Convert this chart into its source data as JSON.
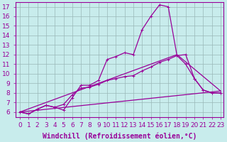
{
  "xlabel": "Windchill (Refroidissement éolien,°C)",
  "background_color": "#c8ecec",
  "line_color": "#990099",
  "xlim": [
    -0.5,
    23.3
  ],
  "ylim": [
    5.5,
    17.5
  ],
  "yticks": [
    6,
    7,
    8,
    9,
    10,
    11,
    12,
    13,
    14,
    15,
    16,
    17
  ],
  "xticks": [
    0,
    1,
    2,
    3,
    4,
    5,
    6,
    7,
    8,
    9,
    10,
    11,
    12,
    13,
    14,
    15,
    16,
    17,
    18,
    19,
    20,
    21,
    22,
    23
  ],
  "curve1_x": [
    0,
    1,
    2,
    3,
    4,
    5,
    6,
    7,
    8,
    9,
    10,
    11,
    12,
    13,
    14,
    15,
    16,
    17,
    18,
    19,
    20,
    21,
    22,
    23
  ],
  "curve1_y": [
    6.0,
    5.8,
    6.3,
    6.7,
    6.5,
    6.2,
    7.5,
    8.8,
    8.8,
    9.3,
    11.5,
    11.8,
    12.2,
    12.0,
    14.6,
    16.0,
    17.2,
    17.0,
    11.9,
    11.0,
    9.5,
    8.3,
    8.0,
    8.0
  ],
  "curve2_x": [
    0,
    1,
    2,
    3,
    4,
    5,
    6,
    7,
    8,
    9,
    10,
    11,
    12,
    13,
    14,
    15,
    16,
    17,
    18,
    19,
    20,
    21,
    22,
    23
  ],
  "curve2_y": [
    6.0,
    5.8,
    6.3,
    6.7,
    6.5,
    6.8,
    7.8,
    8.5,
    8.6,
    8.9,
    9.3,
    9.5,
    9.7,
    9.8,
    10.3,
    10.7,
    11.2,
    11.5,
    11.9,
    12.0,
    9.5,
    8.3,
    8.0,
    8.0
  ],
  "curve3_x": [
    0,
    18,
    23
  ],
  "curve3_y": [
    6.0,
    12.0,
    8.2
  ],
  "curve4_x": [
    0,
    23
  ],
  "curve4_y": [
    6.0,
    8.2
  ],
  "grid_color": "#b0c8c8",
  "xlabel_fontsize": 7,
  "tick_fontsize": 6.5
}
